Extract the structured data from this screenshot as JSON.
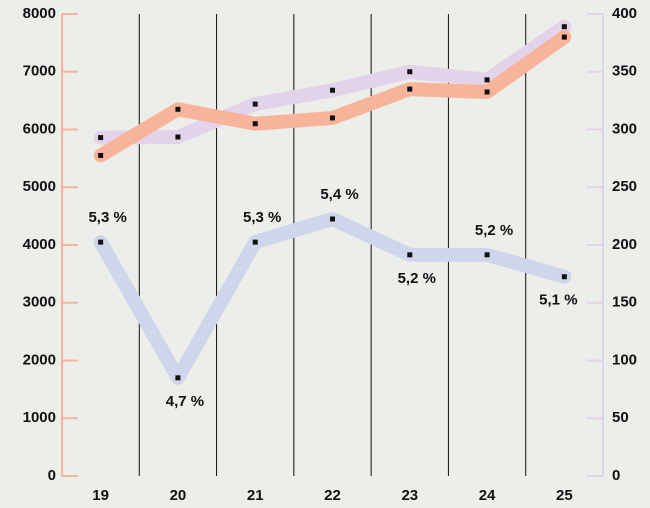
{
  "chart_data": {
    "type": "line",
    "categories": [
      "19",
      "20",
      "21",
      "22",
      "23",
      "24",
      "25"
    ],
    "series": [
      {
        "color": "#e2d2ea",
        "axis": "y2",
        "values": [
          293,
          293.5,
          322,
          334,
          350,
          343,
          389
        ]
      },
      {
        "color": "#f8b49b",
        "axis": "y",
        "values": [
          5550,
          6350,
          6100,
          6200,
          6700,
          6650,
          7600
        ]
      },
      {
        "color": "#cfd5ea",
        "axis": "y",
        "values": [
          4050,
          1700,
          4050,
          4450,
          3830,
          3830,
          3450
        ],
        "value_labels": [
          "5,3 %",
          "4,7 %",
          "5,3 %",
          "5,4 %",
          "5,2 %",
          "5,2 %",
          "5,1 %"
        ]
      }
    ],
    "ylim": [
      0,
      8000
    ],
    "yticks": [
      0,
      1000,
      2000,
      3000,
      4000,
      5000,
      6000,
      7000,
      8000
    ],
    "y2lim": [
      0,
      400
    ],
    "y2ticks": [
      0,
      50,
      100,
      150,
      200,
      250,
      300,
      350,
      400
    ],
    "grid": true
  }
}
